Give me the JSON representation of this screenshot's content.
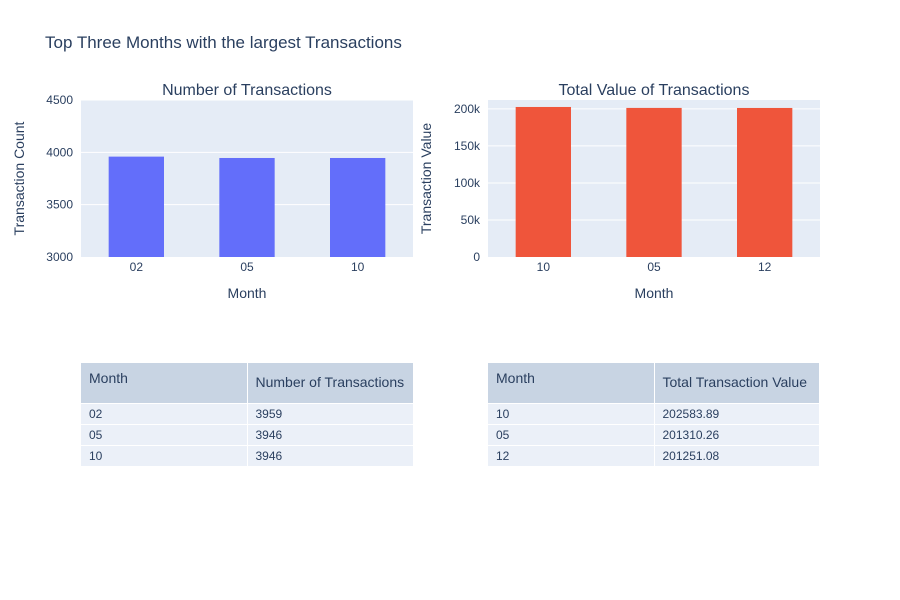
{
  "title": "Top Three Months with the largest Transactions",
  "chart_data": [
    {
      "type": "bar",
      "title": "Number of Transactions",
      "xlabel": "Month",
      "ylabel": "Transaction Count",
      "categories": [
        "02",
        "05",
        "10"
      ],
      "values": [
        3959,
        3946,
        3946
      ],
      "ylim": [
        3000,
        4500
      ],
      "yticks": [
        3000,
        3500,
        4000,
        4500
      ],
      "ytick_labels": [
        "3000",
        "3500",
        "4000",
        "4500"
      ],
      "color": "#636efa",
      "grid": true
    },
    {
      "type": "bar",
      "title": "Total Value of Transactions",
      "xlabel": "Month",
      "ylabel": "Transaction Value",
      "categories": [
        "10",
        "05",
        "12"
      ],
      "values": [
        202583.89,
        201310.26,
        201251.08
      ],
      "ylim": [
        0,
        212000
      ],
      "yticks": [
        0,
        50000,
        100000,
        150000,
        200000
      ],
      "ytick_labels": [
        "0",
        "50k",
        "100k",
        "150k",
        "200k"
      ],
      "color": "#ef553b",
      "grid": true
    },
    {
      "type": "table",
      "columns": [
        "Month",
        "Number of Transactions"
      ],
      "rows": [
        [
          "02",
          "3959"
        ],
        [
          "05",
          "3946"
        ],
        [
          "10",
          "3946"
        ]
      ]
    },
    {
      "type": "table",
      "columns": [
        "Month",
        "Total Transaction Value"
      ],
      "rows": [
        [
          "10",
          "202583.89"
        ],
        [
          "05",
          "201310.26"
        ],
        [
          "12",
          "201251.08"
        ]
      ]
    }
  ]
}
